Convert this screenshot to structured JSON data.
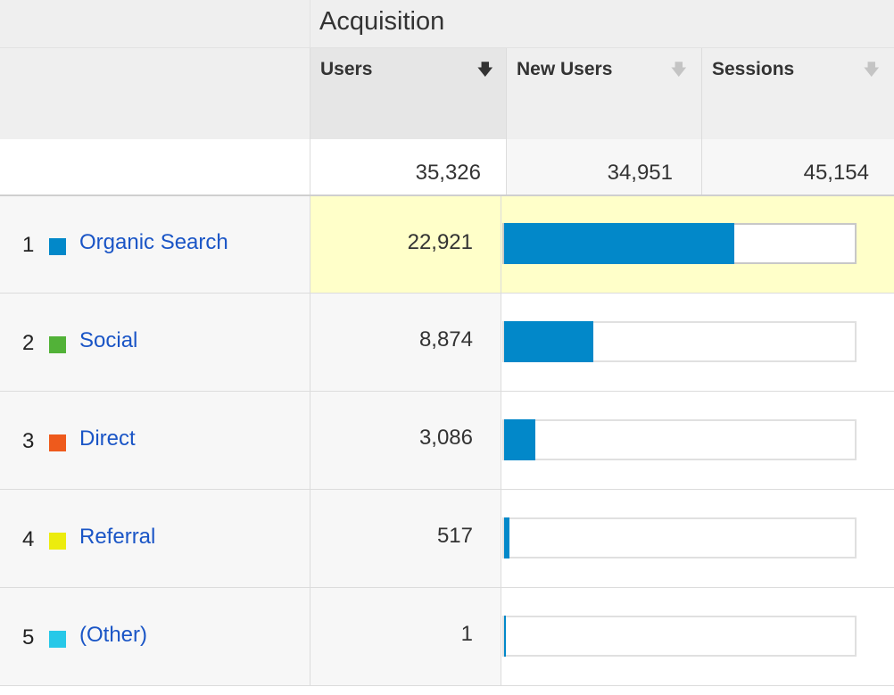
{
  "header": {
    "group_title": "Acquisition",
    "columns": [
      {
        "label": "Users",
        "sorted": true
      },
      {
        "label": "New Users",
        "sorted": false
      },
      {
        "label": "Sessions",
        "sorted": false
      }
    ],
    "sort_icon": "sort-down-arrow-icon"
  },
  "totals": {
    "users": "35,326",
    "new_users": "34,951",
    "sessions": "45,154"
  },
  "rows": [
    {
      "rank": "1",
      "label": "Organic Search",
      "users": "22,921",
      "color": "#0288c9",
      "share": 0.649
    },
    {
      "rank": "2",
      "label": "Social",
      "users": "8,874",
      "color": "#52b238",
      "share": 0.251
    },
    {
      "rank": "3",
      "label": "Direct",
      "users": "3,086",
      "color": "#ee5a1c",
      "share": 0.087
    },
    {
      "rank": "4",
      "label": "Referral",
      "users": "517",
      "color": "#ecec0e",
      "share": 0.015
    },
    {
      "rank": "5",
      "label": "(Other)",
      "users": "1",
      "color": "#27c8e8",
      "share": 3e-05
    }
  ],
  "colors": {
    "bar": "#0288c9",
    "link": "#1a55c6",
    "highlight": "#ffffc9"
  }
}
